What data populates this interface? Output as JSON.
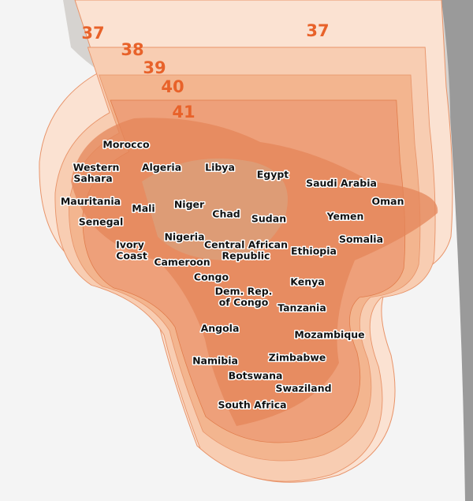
{
  "contour_labels": [
    37,
    38,
    39,
    40,
    41,
    37
  ],
  "countries": [
    {
      "lines": [
        "Morocco"
      ]
    },
    {
      "lines": [
        "Western",
        "Sahara"
      ]
    },
    {
      "lines": [
        "Algeria"
      ]
    },
    {
      "lines": [
        "Libya"
      ]
    },
    {
      "lines": [
        "Egypt"
      ]
    },
    {
      "lines": [
        "Saudi Arabia"
      ]
    },
    {
      "lines": [
        "Oman"
      ]
    },
    {
      "lines": [
        "Mauritania"
      ]
    },
    {
      "lines": [
        "Mali"
      ]
    },
    {
      "lines": [
        "Niger"
      ]
    },
    {
      "lines": [
        "Chad"
      ]
    },
    {
      "lines": [
        "Sudan"
      ]
    },
    {
      "lines": [
        "Yemen"
      ]
    },
    {
      "lines": [
        "Senegal"
      ]
    },
    {
      "lines": [
        "Somalia"
      ]
    },
    {
      "lines": [
        "Ivory",
        "Coast"
      ]
    },
    {
      "lines": [
        "Nigeria"
      ]
    },
    {
      "lines": [
        "Central African",
        "Republic"
      ]
    },
    {
      "lines": [
        "Ethiopia"
      ]
    },
    {
      "lines": [
        "Cameroon"
      ]
    },
    {
      "lines": [
        "Congo"
      ]
    },
    {
      "lines": [
        "Kenya"
      ]
    },
    {
      "lines": [
        "Dem. Rep.",
        "of Congo"
      ]
    },
    {
      "lines": [
        "Tanzania"
      ]
    },
    {
      "lines": [
        "Angola"
      ]
    },
    {
      "lines": [
        "Mozambique"
      ]
    },
    {
      "lines": [
        "Namibia"
      ]
    },
    {
      "lines": [
        "Zimbabwe"
      ]
    },
    {
      "lines": [
        "Botswana"
      ]
    },
    {
      "lines": [
        "Swaziland"
      ]
    },
    {
      "lines": [
        "South Africa"
      ]
    }
  ]
}
